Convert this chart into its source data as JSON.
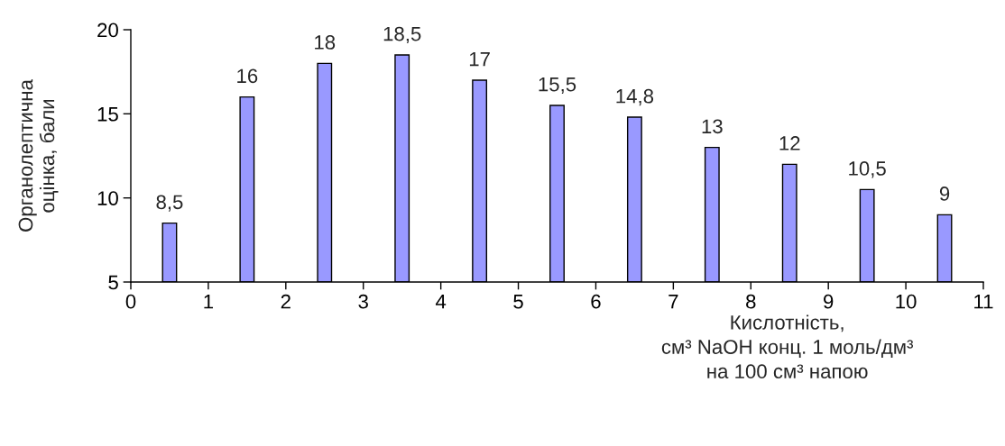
{
  "chart_data": {
    "type": "bar",
    "xlabel": "Кислотність,\nсм³ NaOH конц. 1 моль/дм³\nна 100 см³ напою",
    "ylabel": "Органолептична\nоцінка, бали",
    "x": [
      0.5,
      1.5,
      2.5,
      3.5,
      4.5,
      5.5,
      6.5,
      7.5,
      8.5,
      9.5,
      10.5
    ],
    "values": [
      8.5,
      16,
      18,
      18.5,
      17,
      15.5,
      14.8,
      13,
      12,
      10.5,
      9
    ],
    "value_labels": [
      "8,5",
      "16",
      "18",
      "18,5",
      "17",
      "15,5",
      "14,8",
      "13",
      "12",
      "10,5",
      "9"
    ],
    "color": "#9999ff",
    "xlim": [
      0,
      11
    ],
    "xticks": [
      0,
      1,
      2,
      3,
      4,
      5,
      6,
      7,
      8,
      9,
      10,
      11
    ],
    "ylim": [
      5,
      20
    ],
    "yticks": [
      5,
      10,
      15,
      20
    ],
    "grid": false
  }
}
